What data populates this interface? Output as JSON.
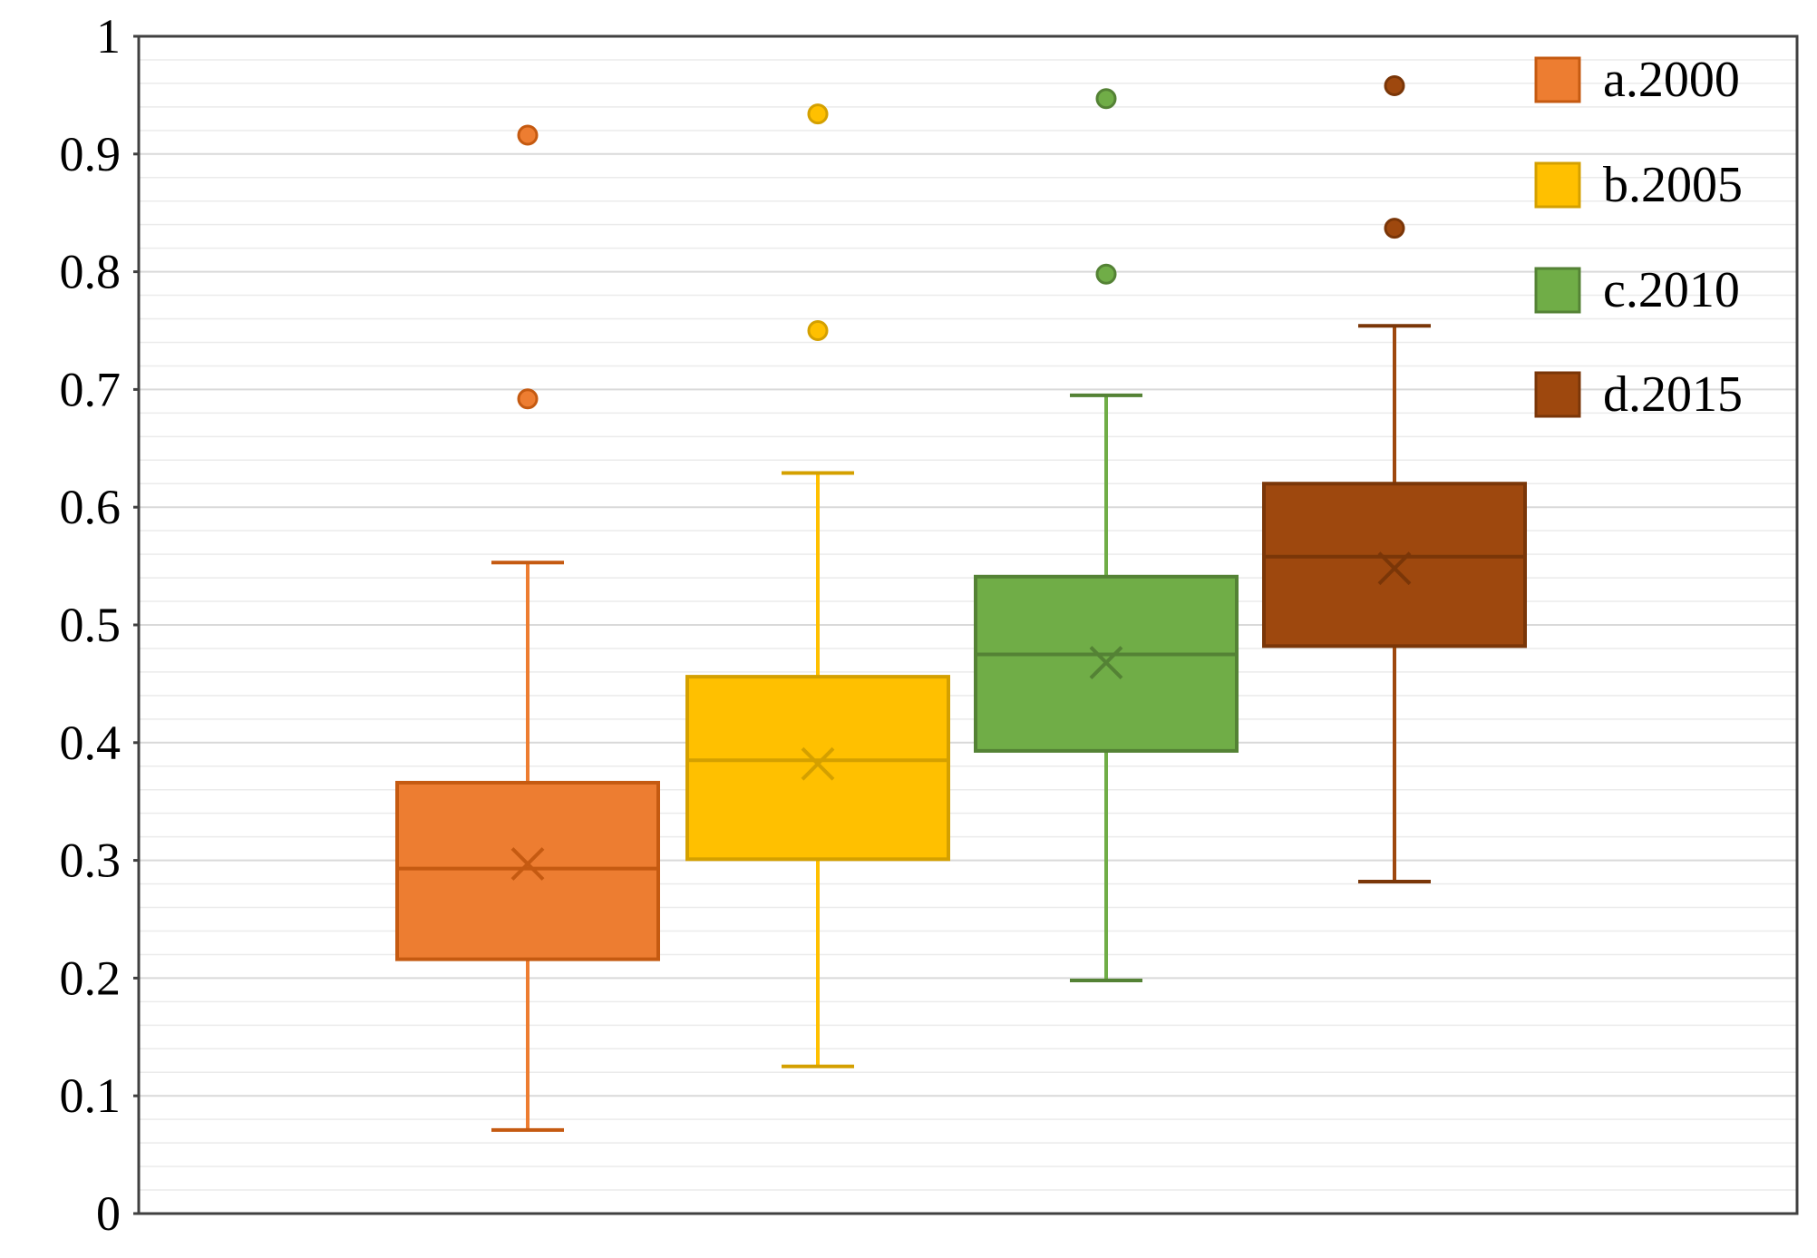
{
  "chart_data": {
    "type": "box",
    "title": "",
    "xlabel": "",
    "ylabel": "",
    "ylim": [
      0,
      1
    ],
    "yticks": [
      "0",
      "0.1",
      "0.2",
      "0.3",
      "0.4",
      "0.5",
      "0.6",
      "0.7",
      "0.8",
      "0.9",
      "1"
    ],
    "grid": true,
    "legend_position": "top-right",
    "series": [
      {
        "name": "a.2000",
        "color": "#ED7D31",
        "stroke": "#C55A11",
        "min": 0.071,
        "q1": 0.216,
        "median": 0.293,
        "mean": 0.297,
        "q3": 0.366,
        "max": 0.553,
        "outliers": [
          0.692,
          0.916
        ]
      },
      {
        "name": "b.2005",
        "color": "#FFC000",
        "stroke": "#D4A000",
        "min": 0.125,
        "q1": 0.301,
        "median": 0.385,
        "mean": 0.382,
        "q3": 0.456,
        "max": 0.629,
        "outliers": [
          0.75,
          0.934
        ]
      },
      {
        "name": "c.2010",
        "color": "#70AD47",
        "stroke": "#548235",
        "min": 0.198,
        "q1": 0.393,
        "median": 0.475,
        "mean": 0.468,
        "q3": 0.541,
        "max": 0.695,
        "outliers": [
          0.798,
          0.947
        ]
      },
      {
        "name": "d.2015",
        "color": "#9E480E",
        "stroke": "#7A3608",
        "min": 0.282,
        "q1": 0.482,
        "median": 0.558,
        "mean": 0.548,
        "q3": 0.62,
        "max": 0.754,
        "outliers": [
          0.837,
          0.958
        ]
      }
    ]
  }
}
